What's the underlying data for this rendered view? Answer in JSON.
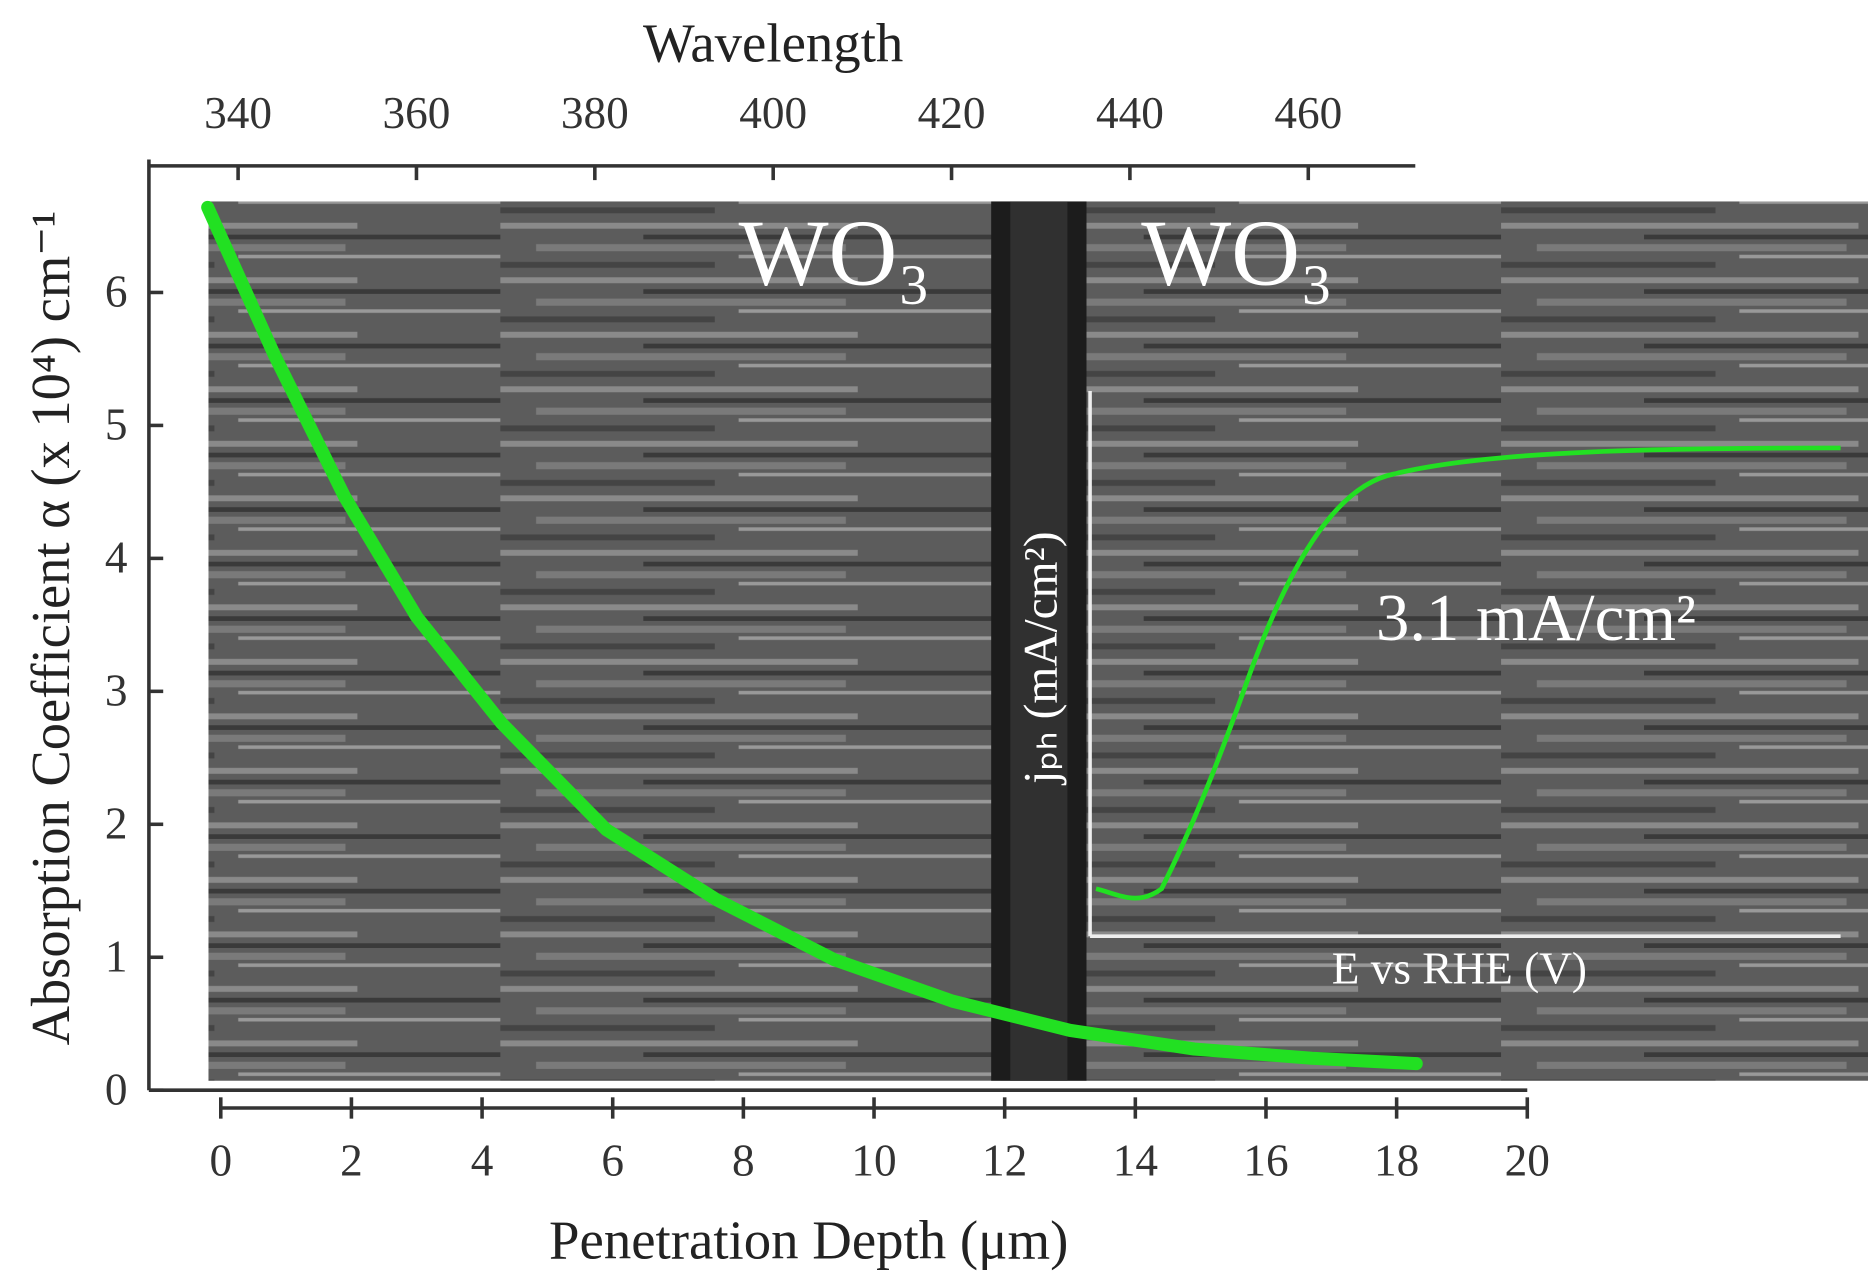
{
  "chart_data": {
    "type": "line",
    "x2_label": "Wavelength",
    "x_label": "Penetration Depth (μm)",
    "y_label": "Absorption Coefficient α (x 10⁴) cm⁻¹",
    "xlim": [
      -1.1,
      20
    ],
    "xticks": [
      0,
      2,
      4,
      6,
      8,
      10,
      12,
      14,
      16,
      18,
      20
    ],
    "x2lim": [
      330,
      472
    ],
    "x2ticks": [
      340,
      360,
      380,
      400,
      420,
      440,
      460
    ],
    "ylim": [
      0,
      7
    ],
    "yticks": [
      0,
      1,
      2,
      3,
      4,
      5,
      6
    ],
    "x": [
      -0.2,
      0.82,
      1.9,
      3.0,
      4.3,
      5.9,
      7.6,
      9.4,
      11.2,
      13.0,
      14.9,
      16.7,
      18.3
    ],
    "series": [
      {
        "color": "#22e022",
        "values": [
          6.64,
          5.53,
          4.46,
          3.56,
          2.76,
          1.96,
          1.43,
          0.98,
          0.67,
          0.45,
          0.31,
          0.24,
          0.2
        ]
      }
    ],
    "annotations": [
      "WO₃",
      "WO₃",
      "3.1 mA/cm²",
      "jₚₕ (mA/cm²)",
      "E vs RHE (V)"
    ]
  }
}
